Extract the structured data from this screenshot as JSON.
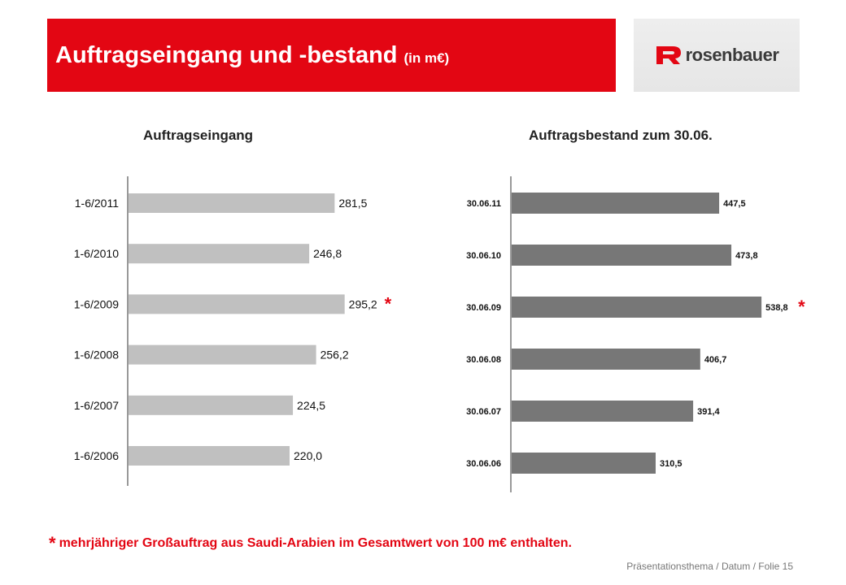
{
  "header": {
    "title": "Auftragseingang und -bestand",
    "unit": "(in m€)",
    "color": "#e30613"
  },
  "logo": {
    "brand": "rosenbauer",
    "icon": "rosenbauer-r-icon"
  },
  "chart_data": [
    {
      "type": "bar",
      "orientation": "horizontal",
      "title": "Auftragseingang",
      "categories": [
        "1-6/2011",
        "1-6/2010",
        "1-6/2009",
        "1-6/2008",
        "1-6/2007",
        "1-6/2006"
      ],
      "values": [
        281.5,
        246.8,
        295.2,
        256.2,
        224.5,
        220.0
      ],
      "value_labels": [
        "281,5",
        "246,8",
        "295,2",
        "256,2",
        "224,5",
        "220,0"
      ],
      "marked_category": "1-6/2009",
      "marker": "*",
      "bar_color": "#c0c0c0",
      "grid": false
    },
    {
      "type": "bar",
      "orientation": "horizontal",
      "title": "Auftragsbestand zum 30.06.",
      "categories": [
        "30.06.11",
        "30.06.10",
        "30.06.09",
        "30.06.08",
        "30.06.07",
        "30.06.06"
      ],
      "values": [
        447.5,
        473.8,
        538.8,
        406.7,
        391.4,
        310.5
      ],
      "value_labels": [
        "447,5",
        "473,8",
        "538,8",
        "406,7",
        "391,4",
        "310,5"
      ],
      "marked_category": "30.06.09",
      "marker": "*",
      "bar_color": "#777777",
      "grid": false
    }
  ],
  "footnote": {
    "star": "*",
    "text": "mehrjähriger Großauftrag aus Saudi-Arabien im Gesamtwert von 100 m€ enthalten."
  },
  "footer": {
    "text": "Präsentationsthema / Datum / Folie 15"
  }
}
